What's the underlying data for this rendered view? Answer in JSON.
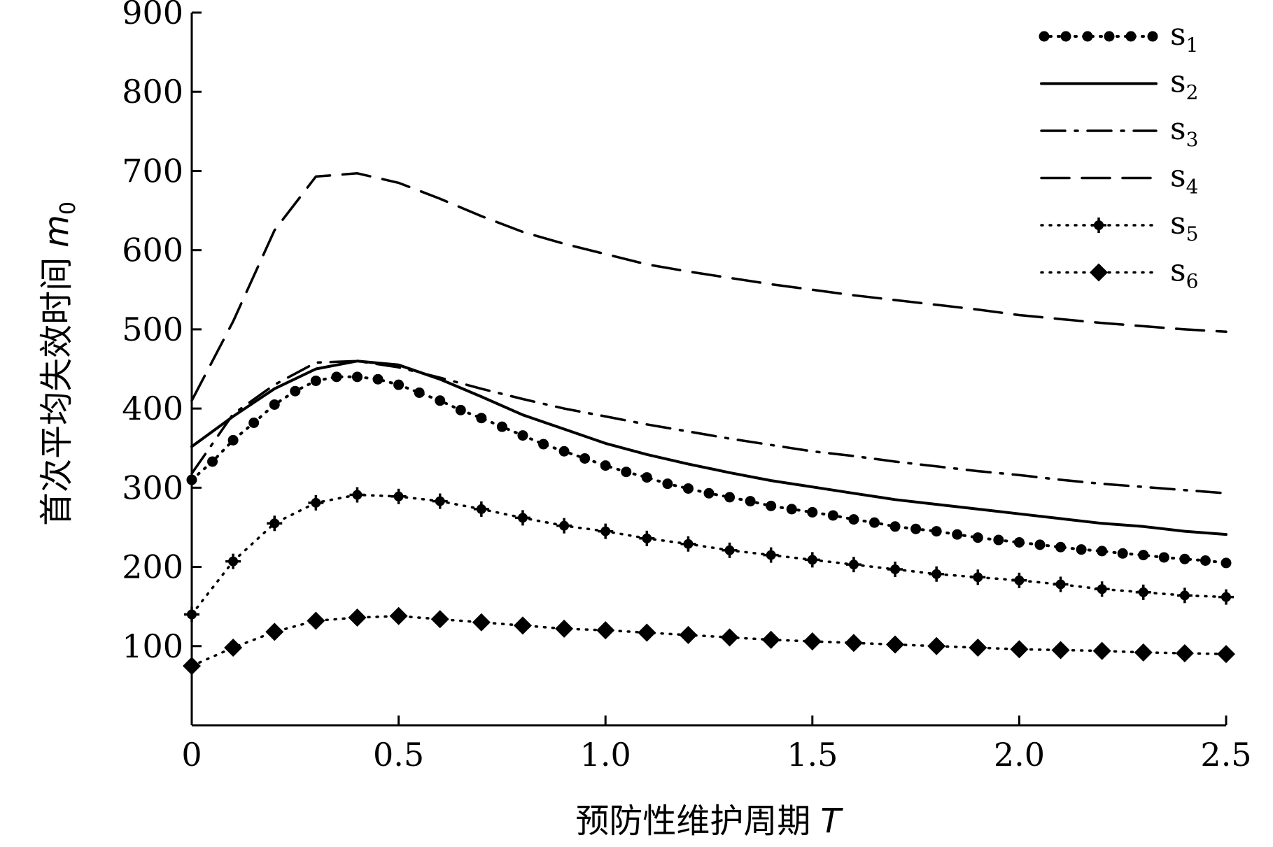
{
  "chart_data": {
    "type": "line",
    "title": "",
    "xlabel": {
      "text": "预防性维护周期",
      "var": "T"
    },
    "ylabel": {
      "text": "首次平均失效时间",
      "var": "m",
      "sub": "0"
    },
    "xlim": [
      0,
      2.5
    ],
    "ylim": [
      0,
      900
    ],
    "x_ticks": [
      {
        "value": 0,
        "label": "0"
      },
      {
        "value": 0.5,
        "label": "0.5"
      },
      {
        "value": 1.0,
        "label": "1.0"
      },
      {
        "value": 1.5,
        "label": "1.5"
      },
      {
        "value": 2.0,
        "label": "2.0"
      },
      {
        "value": 2.5,
        "label": "2.5"
      }
    ],
    "y_ticks": [
      {
        "value": 100,
        "label": "100"
      },
      {
        "value": 200,
        "label": "200"
      },
      {
        "value": 300,
        "label": "300"
      },
      {
        "value": 400,
        "label": "400"
      },
      {
        "value": 500,
        "label": "500"
      },
      {
        "value": 600,
        "label": "600"
      },
      {
        "value": 700,
        "label": "700"
      },
      {
        "value": 800,
        "label": "800"
      },
      {
        "value": 900,
        "label": "900"
      }
    ],
    "grid": false,
    "legend_position": "top-right",
    "series": [
      {
        "name": "s",
        "sub": "1",
        "style": "dotted-circles",
        "points": [
          [
            0,
            310
          ],
          [
            0.05,
            333
          ],
          [
            0.1,
            360
          ],
          [
            0.15,
            382
          ],
          [
            0.2,
            405
          ],
          [
            0.25,
            422
          ],
          [
            0.3,
            435
          ],
          [
            0.35,
            440
          ],
          [
            0.4,
            440
          ],
          [
            0.45,
            437
          ],
          [
            0.5,
            430
          ],
          [
            0.55,
            420
          ],
          [
            0.6,
            410
          ],
          [
            0.65,
            398
          ],
          [
            0.7,
            388
          ],
          [
            0.75,
            377
          ],
          [
            0.8,
            366
          ],
          [
            0.85,
            355
          ],
          [
            0.9,
            346
          ],
          [
            0.95,
            337
          ],
          [
            1.0,
            328
          ],
          [
            1.05,
            320
          ],
          [
            1.1,
            313
          ],
          [
            1.15,
            305
          ],
          [
            1.2,
            299
          ],
          [
            1.25,
            293
          ],
          [
            1.3,
            288
          ],
          [
            1.35,
            283
          ],
          [
            1.4,
            277
          ],
          [
            1.45,
            273
          ],
          [
            1.5,
            269
          ],
          [
            1.55,
            265
          ],
          [
            1.6,
            260
          ],
          [
            1.65,
            256
          ],
          [
            1.7,
            251
          ],
          [
            1.75,
            248
          ],
          [
            1.8,
            245
          ],
          [
            1.85,
            241
          ],
          [
            1.9,
            237
          ],
          [
            1.95,
            234
          ],
          [
            2.0,
            231
          ],
          [
            2.05,
            228
          ],
          [
            2.1,
            225
          ],
          [
            2.15,
            222
          ],
          [
            2.2,
            220
          ],
          [
            2.25,
            217
          ],
          [
            2.3,
            215
          ],
          [
            2.35,
            212
          ],
          [
            2.4,
            210
          ],
          [
            2.45,
            208
          ],
          [
            2.5,
            205
          ]
        ]
      },
      {
        "name": "s",
        "sub": "2",
        "style": "solid",
        "points": [
          [
            0,
            352
          ],
          [
            0.1,
            390
          ],
          [
            0.2,
            425
          ],
          [
            0.3,
            450
          ],
          [
            0.4,
            460
          ],
          [
            0.5,
            455
          ],
          [
            0.6,
            437
          ],
          [
            0.7,
            415
          ],
          [
            0.8,
            392
          ],
          [
            0.9,
            374
          ],
          [
            1.0,
            356
          ],
          [
            1.1,
            342
          ],
          [
            1.2,
            330
          ],
          [
            1.3,
            319
          ],
          [
            1.4,
            309
          ],
          [
            1.5,
            301
          ],
          [
            1.6,
            293
          ],
          [
            1.7,
            285
          ],
          [
            1.8,
            279
          ],
          [
            1.9,
            273
          ],
          [
            2.0,
            267
          ],
          [
            2.1,
            261
          ],
          [
            2.2,
            255
          ],
          [
            2.3,
            251
          ],
          [
            2.4,
            245
          ],
          [
            2.5,
            241
          ]
        ]
      },
      {
        "name": "s",
        "sub": "3",
        "style": "dash-dot",
        "points": [
          [
            0,
            318
          ],
          [
            0.1,
            393
          ],
          [
            0.2,
            430
          ],
          [
            0.3,
            458
          ],
          [
            0.4,
            460
          ],
          [
            0.5,
            452
          ],
          [
            0.6,
            439
          ],
          [
            0.7,
            425
          ],
          [
            0.8,
            412
          ],
          [
            0.9,
            400
          ],
          [
            1.0,
            390
          ],
          [
            1.1,
            380
          ],
          [
            1.2,
            371
          ],
          [
            1.3,
            362
          ],
          [
            1.4,
            354
          ],
          [
            1.5,
            346
          ],
          [
            1.6,
            340
          ],
          [
            1.7,
            333
          ],
          [
            1.8,
            327
          ],
          [
            1.9,
            321
          ],
          [
            2.0,
            316
          ],
          [
            2.1,
            310
          ],
          [
            2.2,
            305
          ],
          [
            2.3,
            301
          ],
          [
            2.4,
            297
          ],
          [
            2.5,
            293
          ]
        ]
      },
      {
        "name": "s",
        "sub": "4",
        "style": "dashed",
        "points": [
          [
            0,
            410
          ],
          [
            0.1,
            510
          ],
          [
            0.2,
            625
          ],
          [
            0.3,
            693
          ],
          [
            0.4,
            697
          ],
          [
            0.5,
            685
          ],
          [
            0.6,
            665
          ],
          [
            0.7,
            643
          ],
          [
            0.8,
            623
          ],
          [
            0.9,
            608
          ],
          [
            1.0,
            595
          ],
          [
            1.1,
            582
          ],
          [
            1.2,
            573
          ],
          [
            1.3,
            565
          ],
          [
            1.4,
            557
          ],
          [
            1.5,
            550
          ],
          [
            1.6,
            543
          ],
          [
            1.7,
            537
          ],
          [
            1.8,
            531
          ],
          [
            1.9,
            525
          ],
          [
            2.0,
            518
          ],
          [
            2.1,
            513
          ],
          [
            2.2,
            508
          ],
          [
            2.3,
            504
          ],
          [
            2.4,
            500
          ],
          [
            2.5,
            497
          ]
        ]
      },
      {
        "name": "s",
        "sub": "5",
        "style": "dotted-plus",
        "points": [
          [
            0,
            140
          ],
          [
            0.1,
            207
          ],
          [
            0.2,
            255
          ],
          [
            0.3,
            281
          ],
          [
            0.4,
            291
          ],
          [
            0.5,
            289
          ],
          [
            0.6,
            283
          ],
          [
            0.7,
            273
          ],
          [
            0.8,
            262
          ],
          [
            0.9,
            252
          ],
          [
            1.0,
            245
          ],
          [
            1.1,
            236
          ],
          [
            1.2,
            229
          ],
          [
            1.3,
            221
          ],
          [
            1.4,
            215
          ],
          [
            1.5,
            209
          ],
          [
            1.6,
            203
          ],
          [
            1.7,
            197
          ],
          [
            1.8,
            191
          ],
          [
            1.9,
            187
          ],
          [
            2.0,
            183
          ],
          [
            2.1,
            178
          ],
          [
            2.2,
            172
          ],
          [
            2.3,
            168
          ],
          [
            2.4,
            164
          ],
          [
            2.5,
            162
          ]
        ]
      },
      {
        "name": "s",
        "sub": "6",
        "style": "dotted-diamond",
        "points": [
          [
            0,
            75
          ],
          [
            0.1,
            98
          ],
          [
            0.2,
            118
          ],
          [
            0.3,
            132
          ],
          [
            0.4,
            136
          ],
          [
            0.5,
            138
          ],
          [
            0.6,
            134
          ],
          [
            0.7,
            130
          ],
          [
            0.8,
            126
          ],
          [
            0.9,
            122
          ],
          [
            1.0,
            120
          ],
          [
            1.1,
            117
          ],
          [
            1.2,
            114
          ],
          [
            1.3,
            111
          ],
          [
            1.4,
            108
          ],
          [
            1.5,
            106
          ],
          [
            1.6,
            104
          ],
          [
            1.7,
            102
          ],
          [
            1.8,
            100
          ],
          [
            1.9,
            98
          ],
          [
            2.0,
            96
          ],
          [
            2.1,
            95
          ],
          [
            2.2,
            94
          ],
          [
            2.3,
            92
          ],
          [
            2.4,
            91
          ],
          [
            2.5,
            90
          ]
        ]
      }
    ]
  }
}
